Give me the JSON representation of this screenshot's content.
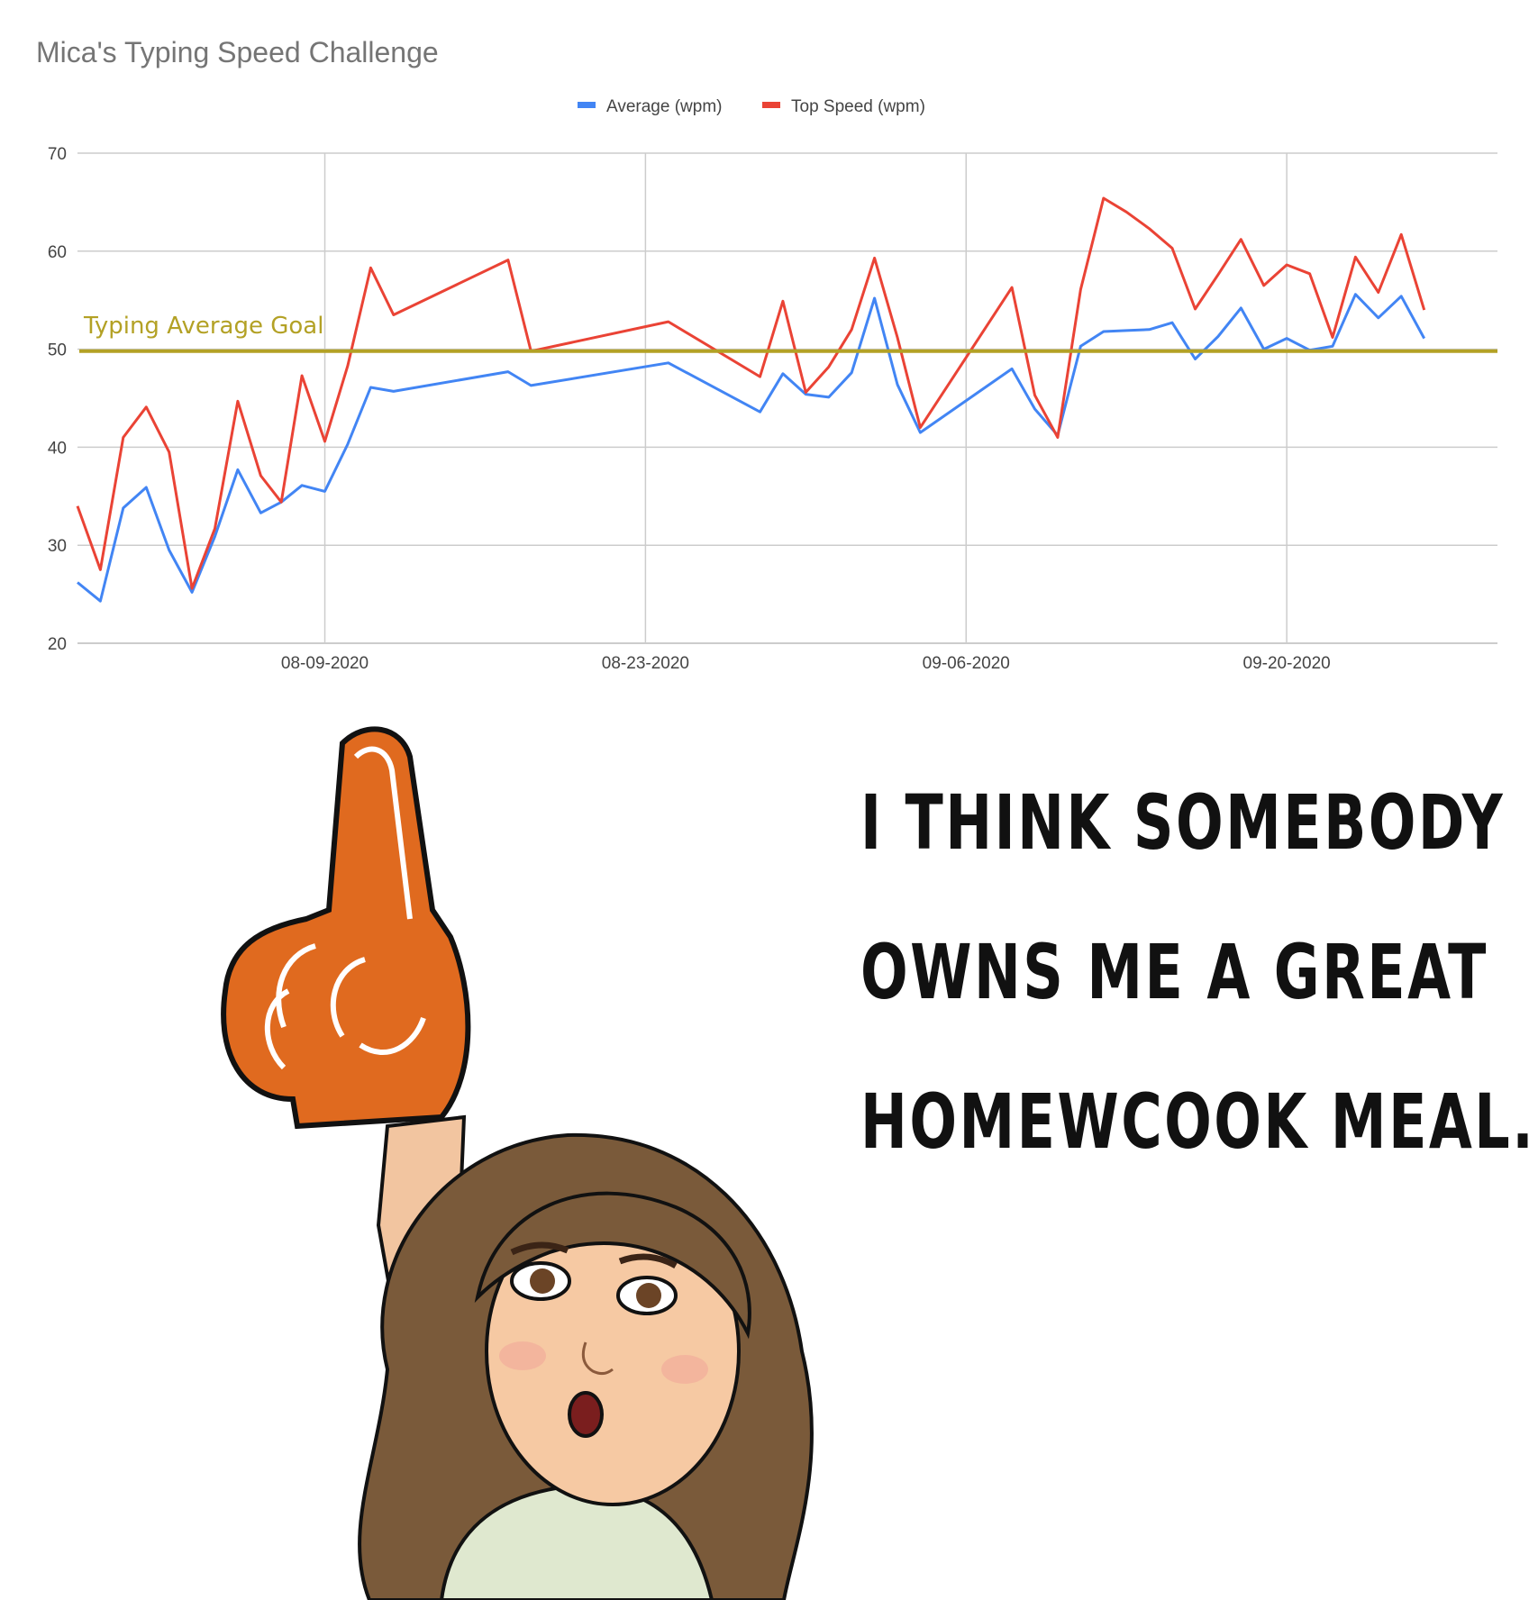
{
  "chart_data": {
    "type": "line",
    "title": "Mica's Typing Speed Challenge",
    "xlabel": "",
    "ylabel": "",
    "ylim": [
      20,
      70
    ],
    "yticks": [
      20,
      30,
      40,
      50,
      60,
      70
    ],
    "x_day_range": [
      -10.8,
      51.2
    ],
    "xticks": [
      {
        "label": "08-09-2020",
        "day": 0
      },
      {
        "label": "08-23-2020",
        "day": 14
      },
      {
        "label": "09-06-2020",
        "day": 28
      },
      {
        "label": "09-20-2020",
        "day": 42
      }
    ],
    "legend_position": "top-center",
    "colors": {
      "average": "#4285f4",
      "top": "#ea4335",
      "goal": "#b3a125",
      "grid": "#cccccc",
      "axis_text": "#444444"
    },
    "series": [
      {
        "name": "Average (wpm)",
        "x": [
          -10.8,
          -9.8,
          -8.8,
          -7.8,
          -6.8,
          -5.8,
          -4.8,
          -3.8,
          -2.8,
          -1.9,
          -1.0,
          0,
          1.0,
          2.0,
          3.0,
          8.0,
          9.0,
          15.0,
          19.0,
          20.0,
          21.0,
          22.0,
          23.0,
          24.0,
          25.0,
          26.0,
          30.0,
          31.0,
          32.0,
          33.0,
          34.0,
          35.0,
          36.0,
          37.0,
          38.0,
          39.0,
          40.0,
          41.0,
          42.0,
          43.0,
          44.0,
          45.0,
          46.0,
          47.0,
          48.0,
          49.0,
          50.0,
          51.2
        ],
        "values": [
          26.2,
          24.3,
          33.8,
          35.9,
          29.5,
          25.2,
          30.9,
          37.7,
          33.3,
          34.4,
          36.1,
          35.5,
          40.3,
          46.1,
          45.7,
          47.7,
          46.3,
          48.6,
          43.6,
          47.5,
          45.4,
          45.1,
          47.6,
          55.2,
          46.4,
          41.5,
          48.0,
          43.9,
          41.2,
          50.3,
          51.8,
          51.9,
          52.0,
          52.7,
          49.0,
          51.3,
          54.2,
          50.0,
          51.1,
          49.9,
          50.3,
          55.6,
          53.2,
          55.4,
          51.1,
          null,
          null,
          null
        ]
      },
      {
        "name": "Top Speed (wpm)",
        "x": [
          -10.8,
          -9.8,
          -8.8,
          -7.8,
          -6.8,
          -5.8,
          -4.8,
          -3.8,
          -2.8,
          -1.9,
          -1.0,
          0,
          1.0,
          2.0,
          3.0,
          8.0,
          9.0,
          15.0,
          19.0,
          20.0,
          21.0,
          22.0,
          23.0,
          24.0,
          25.0,
          26.0,
          30.0,
          31.0,
          32.0,
          33.0,
          34.0,
          35.0,
          36.0,
          37.0,
          38.0,
          39.0,
          40.0,
          41.0,
          42.0,
          43.0,
          44.0,
          45.0,
          46.0,
          47.0,
          48.0,
          49.0,
          50.0,
          51.2
        ],
        "values": [
          34.0,
          27.5,
          41.0,
          44.1,
          39.5,
          25.6,
          31.7,
          44.7,
          37.1,
          34.4,
          47.3,
          40.6,
          48.3,
          58.3,
          53.5,
          59.1,
          49.8,
          52.8,
          47.2,
          54.9,
          45.6,
          48.2,
          52.0,
          59.3,
          51.2,
          42.0,
          56.3,
          45.3,
          41.0,
          56.1,
          65.4,
          64.0,
          62.3,
          60.3,
          54.1,
          57.6,
          61.2,
          56.5,
          58.6,
          57.7,
          51.2,
          59.4,
          55.8,
          61.7,
          54.0,
          null,
          null,
          null
        ]
      }
    ],
    "goal_line": {
      "label": "Typing Average Goal",
      "value": 49.8
    }
  },
  "caption": {
    "lines": [
      "I think somebody",
      "owns me a great",
      "homewcook meal..."
    ]
  }
}
